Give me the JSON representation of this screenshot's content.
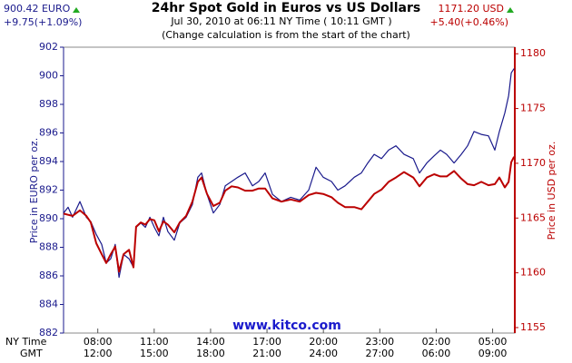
{
  "chart_data": {
    "type": "line",
    "title": "24hr Spot Gold in Euros vs US Dollars",
    "subtitle": "Jul 30, 2010 at 06:11 NY Time ( 10:11 GMT )",
    "note": "(Change calculation is from the start of the chart)",
    "left_price": "900.42 EURO",
    "left_change": "+9.75(+1.09%)",
    "right_price": "1171.20 USD",
    "right_change": "+5.40(+0.46%)",
    "ylabel": "Price in EURO per oz.",
    "y2label": "Price in USD per oz.",
    "watermark": "www.kitco.com",
    "xrow_label": "NY Time",
    "x2row_label": "GMT",
    "grid": false,
    "xlim": [
      6.18,
      30.18
    ],
    "xticks": [
      {
        "value": 8,
        "label": "08:00"
      },
      {
        "value": 11,
        "label": "11:00"
      },
      {
        "value": 14,
        "label": "14:00"
      },
      {
        "value": 17,
        "label": "17:00"
      },
      {
        "value": 20,
        "label": "20:00"
      },
      {
        "value": 23,
        "label": "23:00"
      },
      {
        "value": 26,
        "label": "02:00"
      },
      {
        "value": 29,
        "label": "05:00"
      }
    ],
    "x2ticks": [
      {
        "value": 8,
        "label": "12:00"
      },
      {
        "value": 11,
        "label": "15:00"
      },
      {
        "value": 14,
        "label": "18:00"
      },
      {
        "value": 17,
        "label": "21:00"
      },
      {
        "value": 20,
        "label": "24:00"
      },
      {
        "value": 23,
        "label": "27:00"
      },
      {
        "value": 26,
        "label": "06:00"
      },
      {
        "value": 29,
        "label": "09:00"
      }
    ],
    "ylim": [
      882,
      902
    ],
    "yticks": [
      882,
      884,
      886,
      888,
      890,
      892,
      894,
      896,
      898,
      900,
      902
    ],
    "y2lim": [
      1154.5,
      1180.6
    ],
    "y2ticks": [
      1155,
      1160,
      1165,
      1170,
      1175,
      1180
    ],
    "x": [
      6.18,
      6.42,
      6.66,
      7.05,
      7.39,
      7.63,
      7.92,
      8.21,
      8.45,
      8.69,
      8.93,
      9.13,
      9.37,
      9.66,
      9.9,
      10.04,
      10.29,
      10.53,
      10.77,
      11.01,
      11.25,
      11.49,
      11.73,
      12.07,
      12.36,
      12.7,
      13.03,
      13.32,
      13.52,
      13.81,
      14.15,
      14.49,
      14.78,
      15.12,
      15.45,
      15.84,
      16.23,
      16.56,
      16.9,
      17.29,
      17.77,
      18.26,
      18.74,
      19.22,
      19.61,
      19.99,
      20.43,
      20.77,
      21.15,
      21.64,
      22.02,
      22.36,
      22.7,
      23.09,
      23.47,
      23.86,
      24.29,
      24.78,
      25.11,
      25.5,
      25.89,
      26.22,
      26.56,
      26.95,
      27.33,
      27.67,
      28.01,
      28.4,
      28.78,
      29.12,
      29.36,
      29.65,
      29.85,
      29.99,
      30.14
    ],
    "series": [
      {
        "color": "#1a1a8c",
        "axis": "y",
        "values": [
          890.4,
          890.8,
          890.1,
          891.2,
          890.1,
          889.8,
          888.9,
          888.2,
          886.9,
          887.2,
          888.2,
          885.9,
          887.5,
          887.2,
          886.6,
          889.4,
          889.7,
          889.4,
          890.1,
          889.4,
          888.8,
          890.1,
          889.1,
          888.5,
          889.7,
          890.1,
          891.0,
          892.9,
          893.2,
          891.7,
          890.4,
          891.0,
          892.3,
          892.6,
          892.9,
          893.2,
          892.3,
          892.6,
          893.2,
          891.7,
          891.2,
          891.5,
          891.3,
          892.0,
          893.6,
          892.9,
          892.6,
          892.0,
          892.3,
          892.9,
          893.2,
          893.9,
          894.5,
          894.2,
          894.8,
          895.1,
          894.5,
          894.2,
          893.2,
          893.9,
          894.4,
          894.8,
          894.5,
          893.9,
          894.5,
          895.1,
          896.1,
          895.9,
          895.8,
          894.8,
          896.1,
          897.4,
          898.6,
          900.2,
          900.5
        ]
      },
      {
        "color": "#bb0000",
        "axis": "y2",
        "values": [
          1165.4,
          1165.3,
          1165.2,
          1165.7,
          1165.2,
          1164.6,
          1162.7,
          1161.7,
          1160.9,
          1161.7,
          1162.4,
          1160.1,
          1161.7,
          1162.1,
          1160.5,
          1164.2,
          1164.6,
          1164.4,
          1164.9,
          1164.8,
          1163.8,
          1164.7,
          1164.4,
          1163.7,
          1164.6,
          1165.2,
          1166.5,
          1168.3,
          1168.7,
          1167.2,
          1166.1,
          1166.4,
          1167.5,
          1167.9,
          1167.8,
          1167.5,
          1167.5,
          1167.7,
          1167.7,
          1166.8,
          1166.5,
          1166.7,
          1166.5,
          1167.1,
          1167.3,
          1167.2,
          1166.9,
          1166.4,
          1166.0,
          1166.0,
          1165.8,
          1166.5,
          1167.2,
          1167.6,
          1168.3,
          1168.7,
          1169.2,
          1168.7,
          1167.9,
          1168.7,
          1169.0,
          1168.8,
          1168.8,
          1169.3,
          1168.6,
          1168.1,
          1168.0,
          1168.3,
          1168.0,
          1168.1,
          1168.7,
          1167.8,
          1168.3,
          1170.1,
          1170.6
        ]
      }
    ]
  }
}
